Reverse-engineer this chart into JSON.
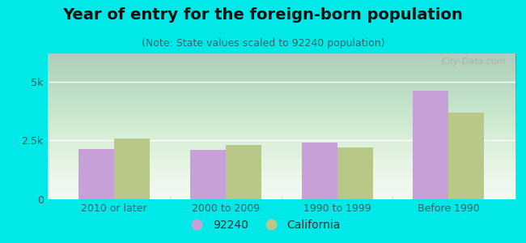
{
  "title": "Year of entry for the foreign-born population",
  "subtitle": "(Note: State values scaled to 92240 population)",
  "categories": [
    "2010 or later",
    "2000 to 2009",
    "1990 to 1999",
    "Before 1990"
  ],
  "values_92240": [
    2150,
    2100,
    2400,
    4600
  ],
  "values_california": [
    2600,
    2300,
    2200,
    3700
  ],
  "bar_color_92240": "#c8a0d8",
  "bar_color_california": "#b8c888",
  "background_color": "#00e8e8",
  "ylim": [
    0,
    6200
  ],
  "yticks": [
    0,
    2500,
    5000
  ],
  "ytick_labels": [
    "0",
    "2.5k",
    "5k"
  ],
  "bar_width": 0.32,
  "legend_label_92240": "92240",
  "legend_label_california": "California",
  "watermark": "City-Data.com",
  "title_fontsize": 14,
  "subtitle_fontsize": 9,
  "tick_fontsize": 9,
  "legend_fontsize": 10
}
